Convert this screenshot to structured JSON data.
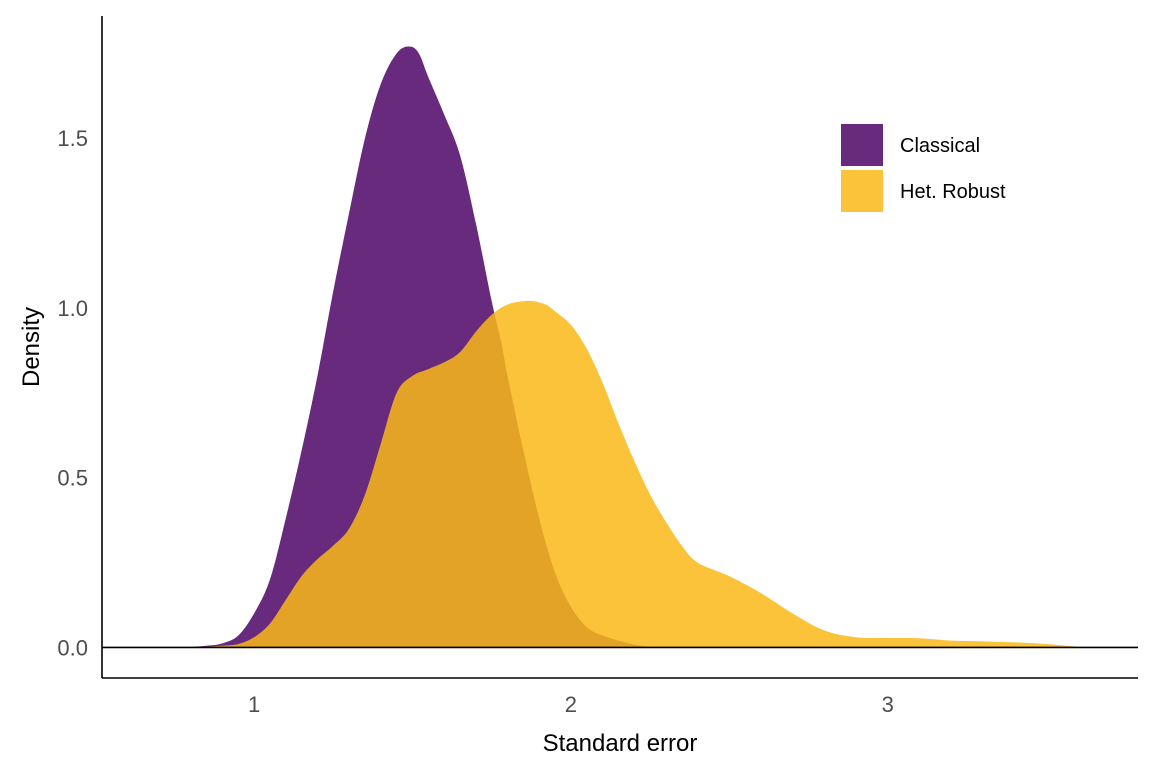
{
  "chart_data": {
    "type": "area",
    "subtype": "density",
    "title": "",
    "xlabel": "Standard error",
    "ylabel": "Density",
    "xlim": [
      0.52,
      3.79
    ],
    "ylim": [
      -0.09,
      1.86
    ],
    "x_ticks": [
      1,
      2,
      3
    ],
    "x_tick_labels": [
      "1",
      "2",
      "3"
    ],
    "y_ticks": [
      0.0,
      0.5,
      1.0,
      1.5
    ],
    "y_tick_labels": [
      "0.0",
      "0.5",
      "1.0",
      "1.5"
    ],
    "grid": false,
    "hline_y": 0,
    "legend": {
      "position": "top-right"
    },
    "series": [
      {
        "name": "Classical",
        "color": "#5c1a72",
        "opacity": 0.93,
        "x": [
          0.78,
          0.85,
          0.9,
          0.95,
          1.0,
          1.05,
          1.1,
          1.15,
          1.2,
          1.25,
          1.3,
          1.35,
          1.4,
          1.45,
          1.49,
          1.52,
          1.55,
          1.6,
          1.65,
          1.7,
          1.75,
          1.78,
          1.8,
          1.85,
          1.9,
          1.95,
          2.0,
          2.05,
          2.1,
          2.15,
          2.22,
          2.3
        ],
        "values": [
          0.0,
          0.005,
          0.012,
          0.035,
          0.1,
          0.2,
          0.38,
          0.58,
          0.8,
          1.05,
          1.28,
          1.5,
          1.66,
          1.75,
          1.77,
          1.75,
          1.68,
          1.57,
          1.45,
          1.25,
          1.02,
          0.9,
          0.8,
          0.58,
          0.38,
          0.22,
          0.12,
          0.06,
          0.035,
          0.02,
          0.005,
          0.0
        ]
      },
      {
        "name": "Het. Robust",
        "color": "#f9b918",
        "opacity": 0.85,
        "x": [
          0.8,
          0.9,
          0.95,
          1.0,
          1.05,
          1.1,
          1.15,
          1.2,
          1.25,
          1.3,
          1.35,
          1.4,
          1.45,
          1.5,
          1.55,
          1.6,
          1.65,
          1.7,
          1.75,
          1.8,
          1.85,
          1.88,
          1.92,
          1.95,
          2.0,
          2.05,
          2.1,
          2.15,
          2.2,
          2.25,
          2.3,
          2.35,
          2.4,
          2.5,
          2.6,
          2.7,
          2.8,
          2.9,
          3.0,
          3.1,
          3.2,
          3.3,
          3.4,
          3.5,
          3.62
        ],
        "values": [
          0.0,
          0.005,
          0.01,
          0.03,
          0.07,
          0.14,
          0.21,
          0.26,
          0.3,
          0.35,
          0.45,
          0.6,
          0.75,
          0.8,
          0.82,
          0.84,
          0.87,
          0.93,
          0.98,
          1.01,
          1.02,
          1.02,
          1.01,
          0.99,
          0.95,
          0.88,
          0.78,
          0.66,
          0.55,
          0.45,
          0.37,
          0.3,
          0.25,
          0.21,
          0.16,
          0.1,
          0.05,
          0.03,
          0.028,
          0.027,
          0.02,
          0.018,
          0.015,
          0.01,
          0.0
        ]
      }
    ]
  }
}
